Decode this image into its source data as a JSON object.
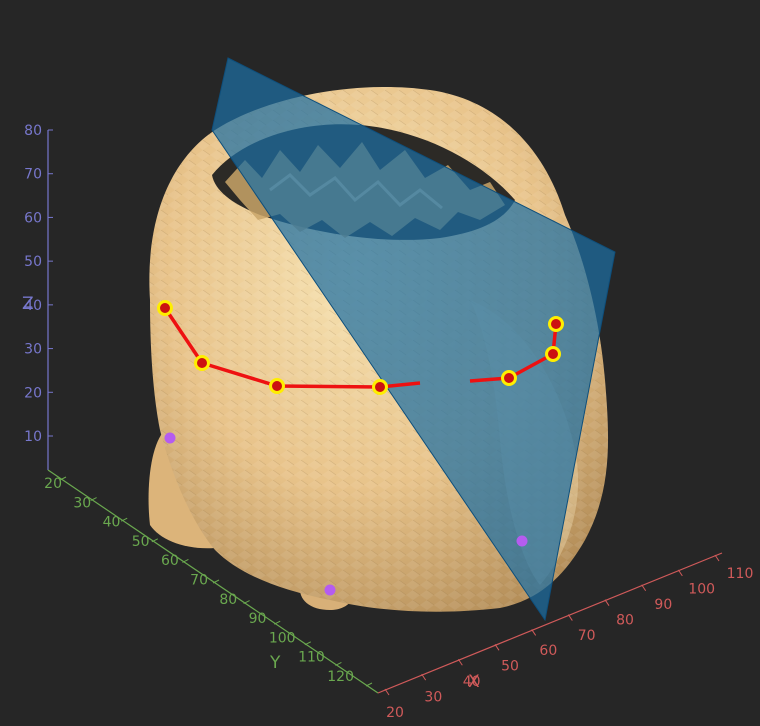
{
  "scene": {
    "background": "#262626",
    "colors": {
      "head_surface": "#e9c489",
      "plane": "#1d6fa3",
      "path_line": "#ee1111",
      "marker_fill": "#cc1111",
      "marker_ring": "#ffee00",
      "fiducial": "#b55cf0",
      "x_axis": "#d05a5a",
      "y_axis": "#6aa84f",
      "z_axis": "#7777cc"
    },
    "axes": {
      "x": {
        "title": "X",
        "ticks": [
          "20",
          "30",
          "40",
          "50",
          "60",
          "70",
          "80",
          "90",
          "100",
          "110"
        ]
      },
      "y": {
        "title": "Y",
        "ticks": [
          "20",
          "30",
          "40",
          "50",
          "60",
          "70",
          "80",
          "90",
          "100",
          "110",
          "120"
        ]
      },
      "z": {
        "title": "Z",
        "ticks": [
          "10",
          "20",
          "30",
          "40",
          "50",
          "60",
          "70",
          "80"
        ]
      }
    },
    "path_points_count": 8,
    "fiducials_count": 3
  }
}
